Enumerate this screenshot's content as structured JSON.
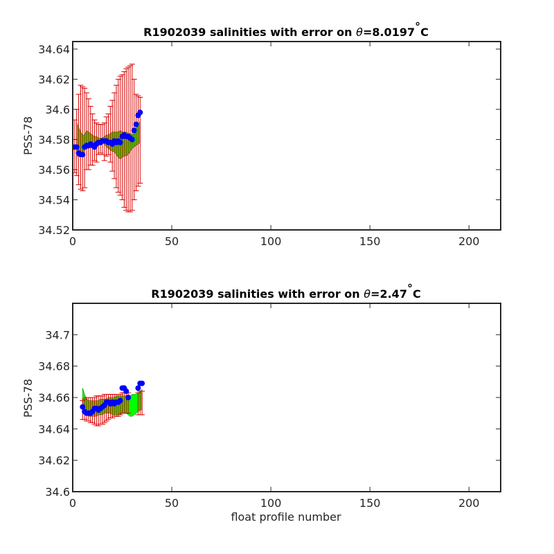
{
  "colors": {
    "error_bar": "#d40000",
    "band": "#00ff00",
    "band_edge": "#0a8a0a",
    "points": "#0000ff",
    "axes": "#262626"
  },
  "chart_data": [
    {
      "type": "scatter",
      "title_pre": "R1902039 salinities with error on ",
      "title_symbol": "θ",
      "title_post": "=8.0197",
      "title_sup": "°",
      "title_unit": "C",
      "xlabel": "",
      "ylabel": "PSS-78",
      "xlim": [
        0,
        216
      ],
      "ylim": [
        34.52,
        34.645
      ],
      "xticks": [
        0,
        50,
        100,
        150,
        200
      ],
      "xtick_labels": [
        "0",
        "50",
        "100",
        "150",
        "200"
      ],
      "yticks": [
        34.52,
        34.54,
        34.56,
        34.58,
        34.6,
        34.62,
        34.64
      ],
      "ytick_labels": [
        "34.52",
        "34.54",
        "34.56",
        "34.58",
        "34.6",
        "34.62",
        "34.64"
      ],
      "x": [
        1,
        2,
        3,
        4,
        5,
        6,
        7,
        8,
        9,
        10,
        11,
        12,
        13,
        14,
        15,
        16,
        17,
        18,
        19,
        20,
        21,
        22,
        23,
        24,
        25,
        26,
        27,
        28,
        29,
        30,
        31,
        32,
        33,
        34
      ],
      "salinity": [
        34.575,
        34.575,
        34.571,
        34.57,
        34.57,
        34.575,
        34.576,
        34.576,
        34.577,
        34.576,
        34.575,
        34.577,
        34.578,
        34.578,
        34.579,
        34.579,
        34.579,
        34.578,
        34.578,
        34.577,
        34.579,
        34.578,
        34.579,
        34.578,
        34.582,
        34.583,
        34.582,
        34.582,
        34.581,
        34.58,
        34.586,
        34.59,
        34.596,
        34.598
      ],
      "err_low": [
        34.558,
        34.556,
        34.55,
        34.547,
        34.546,
        34.548,
        34.56,
        34.56,
        34.563,
        34.563,
        34.566,
        34.565,
        34.57,
        34.571,
        34.57,
        34.566,
        34.569,
        34.57,
        34.565,
        34.559,
        34.554,
        34.548,
        34.545,
        34.543,
        34.54,
        34.535,
        34.533,
        34.532,
        34.532,
        34.533,
        34.54,
        34.546,
        34.549,
        34.551
      ],
      "err_high": [
        34.593,
        34.6,
        34.61,
        34.616,
        34.615,
        34.614,
        34.611,
        34.607,
        34.602,
        34.597,
        34.593,
        34.591,
        34.59,
        34.59,
        34.59,
        34.591,
        34.595,
        34.597,
        34.602,
        34.606,
        34.611,
        34.616,
        34.62,
        34.622,
        34.623,
        34.625,
        34.627,
        34.628,
        34.629,
        34.63,
        34.62,
        34.61,
        34.609,
        34.608
      ],
      "band_x": [
        2,
        3,
        4,
        5,
        6,
        7,
        8,
        9,
        10,
        11,
        12,
        13,
        14,
        15,
        16,
        17,
        18,
        19,
        20,
        21,
        22,
        23,
        24,
        25,
        26,
        27,
        28,
        29,
        30,
        31,
        32,
        33,
        34
      ],
      "band_low": [
        34.568,
        34.57,
        34.57,
        34.571,
        34.573,
        34.574,
        34.574,
        34.575,
        34.575,
        34.575,
        34.576,
        34.577,
        34.577,
        34.578,
        34.577,
        34.575,
        34.574,
        34.573,
        34.572,
        34.572,
        34.57,
        34.568,
        34.567,
        34.568,
        34.569,
        34.569,
        34.57,
        34.572,
        34.574,
        34.575,
        34.576,
        34.577,
        34.578
      ],
      "band_high": [
        34.591,
        34.588,
        34.585,
        34.583,
        34.583,
        34.586,
        34.585,
        34.584,
        34.583,
        34.582,
        34.582,
        34.581,
        34.581,
        34.581,
        34.582,
        34.583,
        34.583,
        34.584,
        34.585,
        34.585,
        34.585,
        34.585,
        34.586,
        34.585,
        34.585,
        34.585,
        34.584,
        34.584,
        34.583,
        34.584,
        34.586,
        34.59,
        34.592
      ]
    },
    {
      "type": "scatter",
      "title_pre": "R1902039 salinities with error on ",
      "title_symbol": "θ",
      "title_post": "=2.47",
      "title_sup": "°",
      "title_unit": "C",
      "xlabel": "float profile number",
      "ylabel": "PSS-78",
      "xlim": [
        0,
        216
      ],
      "ylim": [
        34.6,
        34.72
      ],
      "xticks": [
        0,
        50,
        100,
        150,
        200
      ],
      "xtick_labels": [
        "0",
        "50",
        "100",
        "150",
        "200"
      ],
      "yticks": [
        34.6,
        34.62,
        34.64,
        34.66,
        34.68,
        34.7
      ],
      "ytick_labels": [
        "34.6",
        "34.62",
        "34.64",
        "34.66",
        "34.68",
        "34.7"
      ],
      "x": [
        5,
        6,
        7,
        8,
        9,
        10,
        11,
        12,
        13,
        14,
        15,
        16,
        17,
        18,
        19,
        20,
        21,
        22,
        23,
        24,
        25,
        26,
        27,
        28,
        33,
        34,
        35
      ],
      "salinity": [
        34.654,
        34.651,
        34.65,
        34.65,
        34.65,
        34.651,
        34.653,
        34.653,
        34.652,
        34.653,
        34.654,
        34.655,
        34.657,
        34.657,
        34.656,
        34.657,
        34.656,
        34.657,
        34.657,
        34.658,
        34.666,
        34.666,
        34.664,
        34.66,
        34.666,
        34.669,
        34.669
      ],
      "err_low": [
        34.646,
        34.646,
        34.645,
        34.645,
        34.644,
        34.644,
        34.643,
        34.642,
        34.642,
        34.643,
        34.643,
        34.644,
        34.645,
        34.646,
        34.647,
        34.647,
        34.648,
        34.648,
        34.648,
        34.649,
        34.65,
        34.65,
        34.65,
        34.65,
        34.649,
        34.649,
        34.649
      ],
      "err_high": [
        34.658,
        34.659,
        34.66,
        34.66,
        34.66,
        34.66,
        34.66,
        34.661,
        34.661,
        34.661,
        34.661,
        34.662,
        34.662,
        34.662,
        34.662,
        34.662,
        34.662,
        34.662,
        34.662,
        34.662,
        34.663,
        34.663,
        34.663,
        34.663,
        34.663,
        34.664,
        34.664
      ],
      "band_x": [
        5,
        6,
        7,
        8,
        9,
        10,
        11,
        12,
        13,
        14,
        15,
        16,
        17,
        18,
        19,
        20,
        21,
        22,
        23,
        24,
        25,
        26,
        27,
        28,
        29,
        30,
        31,
        32,
        33,
        34,
        35
      ],
      "band_low": [
        34.65,
        34.649,
        34.649,
        34.648,
        34.648,
        34.648,
        34.648,
        34.648,
        34.649,
        34.649,
        34.649,
        34.65,
        34.65,
        34.65,
        34.65,
        34.649,
        34.649,
        34.649,
        34.649,
        34.649,
        34.65,
        34.65,
        34.65,
        34.649,
        34.648,
        34.648,
        34.649,
        34.65,
        34.651,
        34.652,
        34.652
      ],
      "band_high": [
        34.666,
        34.662,
        34.659,
        34.658,
        34.658,
        34.658,
        34.658,
        34.658,
        34.658,
        34.659,
        34.659,
        34.659,
        34.659,
        34.66,
        34.66,
        34.66,
        34.66,
        34.661,
        34.661,
        34.661,
        34.661,
        34.661,
        34.661,
        34.661,
        34.661,
        34.662,
        34.662,
        34.662,
        34.663,
        34.664,
        34.665
      ]
    }
  ]
}
